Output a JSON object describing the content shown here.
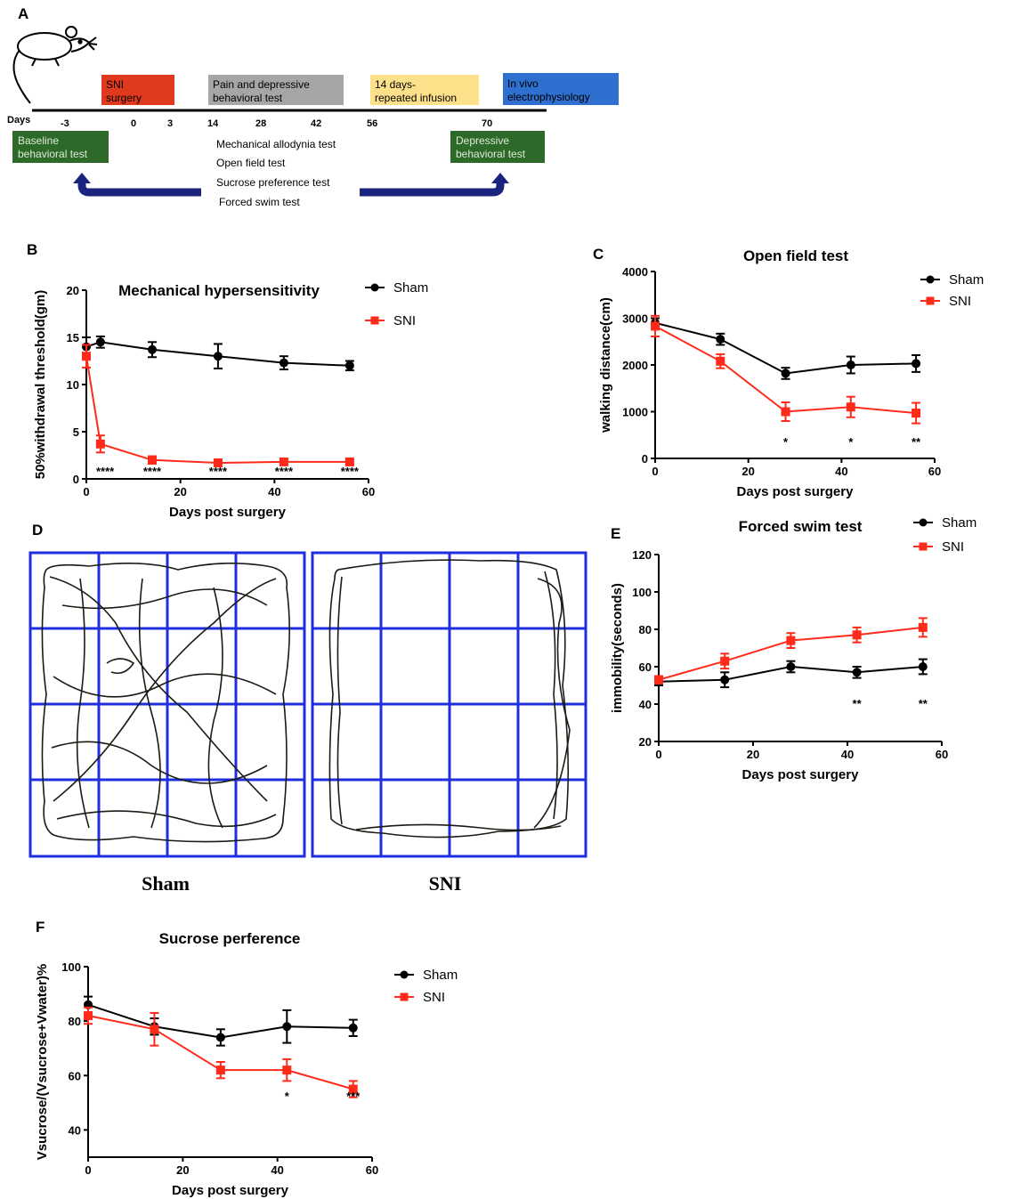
{
  "panel_labels": {
    "A": "A",
    "B": "B",
    "C": "C",
    "D": "D",
    "E": "E",
    "F": "F"
  },
  "timeline": {
    "days_label": "Days",
    "days": [
      "-3",
      "0",
      "3",
      "14",
      "28",
      "42",
      "56",
      "70"
    ],
    "boxes": {
      "sni": [
        "SNI",
        "surgery"
      ],
      "pain": [
        "Pain and depressive",
        "behavioral test"
      ],
      "infusion": [
        "14 days-",
        "repeated infusion"
      ],
      "vivo": [
        "In vivo",
        "electrophysiology"
      ],
      "baseline": [
        "Baseline",
        "behavioral test"
      ],
      "depressive": [
        "Depressive",
        "behavioral test"
      ]
    },
    "tests": [
      "Mechanical allodynia test",
      "Open field test",
      "Sucrose preference test",
      "Forced swim test"
    ],
    "colors": {
      "sni": "#e03a1e",
      "pain": "#a6a6a6",
      "infusion": "#fde08a",
      "vivo": "#2e6fd0",
      "green": "#2d6a2a",
      "arrow": "#1a237e"
    }
  },
  "legend": {
    "sham": "Sham",
    "sni": "SNI"
  },
  "colors": {
    "sham": "#000000",
    "sni": "#ff2a1a",
    "grid": "#1f2fe0"
  },
  "arena": {
    "sham_label": "Sham",
    "sni_label": "SNI"
  },
  "chart_data": [
    {
      "id": "B",
      "type": "line",
      "title": "Mechanical hypersensitivity",
      "xlabel": "Days post surgery",
      "ylabel": "50%withdrawal threshold(gm)",
      "xlim": [
        0,
        60
      ],
      "ylim": [
        0,
        20
      ],
      "xticks": [
        0,
        20,
        40,
        60
      ],
      "yticks": [
        0,
        5,
        10,
        15,
        20
      ],
      "series": [
        {
          "name": "Sham",
          "x": [
            0,
            3,
            14,
            28,
            42,
            56
          ],
          "y": [
            14.0,
            14.5,
            13.7,
            13.0,
            12.3,
            12.0
          ],
          "err": [
            1.0,
            0.6,
            0.8,
            1.3,
            0.7,
            0.5
          ]
        },
        {
          "name": "SNI",
          "x": [
            0,
            3,
            14,
            28,
            42,
            56
          ],
          "y": [
            13.0,
            3.7,
            2.0,
            1.7,
            1.8,
            1.8
          ],
          "err": [
            1.2,
            0.9,
            0.4,
            0.3,
            0.2,
            0.2
          ]
        }
      ],
      "annotations": [
        {
          "x": 4,
          "text": "****"
        },
        {
          "x": 14,
          "text": "****"
        },
        {
          "x": 28,
          "text": "****"
        },
        {
          "x": 42,
          "text": "****"
        },
        {
          "x": 56,
          "text": "****"
        }
      ]
    },
    {
      "id": "C",
      "type": "line",
      "title": "Open field test",
      "xlabel": "Days post surgery",
      "ylabel": "walking distance(cm)",
      "xlim": [
        0,
        60
      ],
      "ylim": [
        0,
        4000
      ],
      "xticks": [
        0,
        20,
        40,
        60
      ],
      "yticks": [
        0,
        1000,
        2000,
        3000,
        4000
      ],
      "series": [
        {
          "name": "Sham",
          "x": [
            0,
            14,
            28,
            42,
            56
          ],
          "y": [
            2900,
            2550,
            1820,
            2000,
            2030
          ],
          "err": [
            100,
            120,
            120,
            180,
            180
          ]
        },
        {
          "name": "SNI",
          "x": [
            0,
            14,
            28,
            42,
            56
          ],
          "y": [
            2830,
            2080,
            1000,
            1100,
            970
          ],
          "err": [
            220,
            150,
            200,
            220,
            220
          ]
        }
      ],
      "annotations": [
        {
          "x": 28,
          "text": "*"
        },
        {
          "x": 42,
          "text": "*"
        },
        {
          "x": 56,
          "text": "**"
        }
      ]
    },
    {
      "id": "E",
      "type": "line",
      "title": "Forced swim test",
      "xlabel": "Days post surgery",
      "ylabel": "immobility(seconds)",
      "xlim": [
        0,
        60
      ],
      "ylim": [
        20,
        120
      ],
      "xticks": [
        0,
        20,
        40,
        60
      ],
      "yticks": [
        20,
        40,
        60,
        80,
        100,
        120
      ],
      "series": [
        {
          "name": "Sham",
          "x": [
            0,
            14,
            28,
            42,
            56
          ],
          "y": [
            52,
            53,
            60,
            57,
            60
          ],
          "err": [
            2,
            4,
            3,
            3,
            4
          ]
        },
        {
          "name": "SNI",
          "x": [
            0,
            14,
            28,
            42,
            56
          ],
          "y": [
            53,
            63,
            74,
            77,
            81
          ],
          "err": [
            2,
            4,
            4,
            4,
            5
          ]
        }
      ],
      "annotations": [
        {
          "x": 42,
          "text": "**"
        },
        {
          "x": 56,
          "text": "**"
        }
      ]
    },
    {
      "id": "F",
      "type": "line",
      "title": "Sucrose perference",
      "xlabel": "Days post surgery",
      "ylabel": "Vsucrose/(Vsucrose+Vwater)%",
      "xlim": [
        0,
        60
      ],
      "ylim": [
        30,
        100
      ],
      "xticks": [
        0,
        20,
        40,
        60
      ],
      "yticks": [
        40,
        60,
        80,
        100
      ],
      "series": [
        {
          "name": "Sham",
          "x": [
            0,
            14,
            28,
            42,
            56
          ],
          "y": [
            86,
            78,
            74,
            78,
            77.5
          ],
          "err": [
            3,
            3,
            3,
            6,
            3
          ]
        },
        {
          "name": "SNI",
          "x": [
            0,
            14,
            28,
            42,
            56
          ],
          "y": [
            82,
            77,
            62,
            62,
            55
          ],
          "err": [
            3,
            6,
            3,
            4,
            3
          ]
        }
      ],
      "annotations": [
        {
          "x": 42,
          "text": "*"
        },
        {
          "x": 56,
          "text": "***"
        }
      ]
    }
  ]
}
